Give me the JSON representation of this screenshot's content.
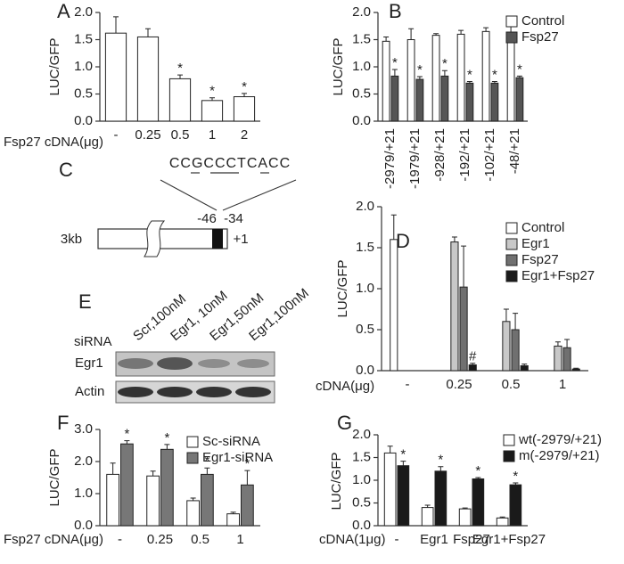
{
  "chart_data": [
    {
      "type": "bar",
      "panel": "A",
      "y_label": "LUC/GFP",
      "x_label": "Fsp27 cDNA(μg)",
      "categories": [
        "-",
        "0.25",
        "0.5",
        "1",
        "2"
      ],
      "series": [
        {
          "color": "#ffffff",
          "values": [
            1.62,
            1.55,
            0.78,
            0.38,
            0.45
          ],
          "errors": [
            0.3,
            0.15,
            0.07,
            0.05,
            0.06
          ],
          "significance": [
            null,
            null,
            "*",
            "*",
            "*"
          ]
        }
      ],
      "ylim": [
        0,
        2
      ],
      "yticks": [
        {
          "value": 0,
          "label": "0.0"
        },
        0.5,
        {
          "value": 1,
          "label": "1.0"
        },
        1.5,
        {
          "value": 2,
          "label": "2.0"
        }
      ]
    },
    {
      "type": "bar",
      "panel": "B",
      "y_label": "LUC/GFP",
      "categories": [
        "-2979/+21",
        "-1979/+21",
        "-928/+21",
        "-192/+21",
        "-102/+21",
        "-48/+21"
      ],
      "series": [
        {
          "name": "Control",
          "color": "#ffffff",
          "values": [
            1.47,
            1.5,
            1.58,
            1.6,
            1.65,
            1.6
          ],
          "errors": [
            0.08,
            0.2,
            0.03,
            0.07,
            0.07,
            0.3
          ],
          "significance": [
            null,
            null,
            null,
            null,
            null,
            null
          ]
        },
        {
          "name": "Fsp27",
          "color": "#555555",
          "values": [
            0.83,
            0.77,
            0.83,
            0.7,
            0.7,
            0.8
          ],
          "errors": [
            0.12,
            0.05,
            0.1,
            0.03,
            0.03,
            0.03
          ],
          "significance": [
            "*",
            "*",
            "*",
            "*",
            "*",
            "*"
          ]
        }
      ],
      "ylim": [
        0,
        2
      ],
      "yticks": [
        {
          "value": 0,
          "label": "0.0"
        },
        0.5,
        {
          "value": 1,
          "label": "1.0"
        },
        1.5,
        {
          "value": 2,
          "label": "2.0"
        }
      ],
      "legend": "upper-right"
    },
    {
      "type": "bar",
      "panel": "D",
      "y_label": "LUC/GFP",
      "x_label": "cDNA(μg)",
      "categories": [
        "-",
        "0.25",
        "0.5",
        "1"
      ],
      "series": [
        {
          "name": "Control",
          "color": "#ffffff",
          "values": [
            1.6,
            null,
            null,
            null
          ],
          "errors": [
            0.3,
            null,
            null,
            null
          ],
          "significance": [
            null,
            null,
            null,
            null
          ]
        },
        {
          "name": "Egr1",
          "color": "#c8c8c8",
          "values": [
            null,
            1.57,
            0.6,
            0.3
          ],
          "errors": [
            null,
            0.06,
            0.15,
            0.05
          ],
          "significance": [
            null,
            null,
            null,
            null
          ]
        },
        {
          "name": "Fsp27",
          "color": "#707070",
          "values": [
            null,
            1.02,
            0.5,
            0.28
          ],
          "errors": [
            null,
            0.5,
            0.2,
            0.1
          ],
          "significance": [
            null,
            null,
            null,
            null
          ]
        },
        {
          "name": "Egr1+Fsp27",
          "color": "#1a1a1a",
          "values": [
            null,
            0.07,
            0.06,
            0.02
          ],
          "errors": [
            null,
            0.02,
            0.02,
            0.01
          ],
          "significance": [
            null,
            "#",
            null,
            null
          ]
        }
      ],
      "ylim": [
        0,
        2
      ],
      "yticks": [
        {
          "value": 0,
          "label": "0.0"
        },
        0.5,
        {
          "value": 1,
          "label": "1.0"
        },
        1.5,
        {
          "value": 2,
          "label": "2.0"
        }
      ],
      "legend": "upper-right"
    },
    {
      "type": "bar",
      "panel": "F",
      "y_label": "LUC/GFP",
      "x_label": "Fsp27 cDNA(μg)",
      "categories": [
        "-",
        "0.25",
        "0.5",
        "1"
      ],
      "series": [
        {
          "name": "Sc-siRNA",
          "color": "#ffffff",
          "values": [
            1.6,
            1.55,
            0.78,
            0.37
          ],
          "errors": [
            0.35,
            0.15,
            0.08,
            0.05
          ],
          "significance": [
            null,
            null,
            null,
            null
          ]
        },
        {
          "name": "Egr1-siRNA",
          "color": "#777777",
          "values": [
            2.55,
            2.38,
            1.6,
            1.27
          ],
          "errors": [
            0.1,
            0.15,
            0.2,
            0.45
          ],
          "significance": [
            "*",
            "*",
            "*",
            "*"
          ]
        }
      ],
      "ylim": [
        0,
        3
      ],
      "yticks": [
        {
          "value": 0,
          "label": "0.0"
        },
        {
          "value": 1,
          "label": "1.0"
        },
        {
          "value": 2,
          "label": "2.0"
        },
        {
          "value": 3,
          "label": "3.0"
        }
      ],
      "legend": "upper-right"
    },
    {
      "type": "bar",
      "panel": "G",
      "y_label": "LUC/GFP",
      "x_label": "cDNA(1μg)",
      "categories": [
        "-",
        "Egr1",
        "Fsp27",
        "Egr1+Fsp27"
      ],
      "series": [
        {
          "name": "wt(-2979/+21)",
          "color": "#ffffff",
          "values": [
            1.6,
            0.4,
            0.37,
            0.17
          ],
          "errors": [
            0.15,
            0.05,
            0.02,
            0.02
          ],
          "significance": [
            null,
            null,
            null,
            null
          ]
        },
        {
          "name": "m(-2979/+21)",
          "color": "#1a1a1a",
          "values": [
            1.32,
            1.2,
            1.03,
            0.9
          ],
          "errors": [
            0.1,
            0.1,
            0.03,
            0.04
          ],
          "significance": [
            "*",
            "*",
            "*",
            "*"
          ]
        }
      ],
      "ylim": [
        0,
        2
      ],
      "yticks": [
        {
          "value": 0,
          "label": "0.0"
        },
        0.5,
        {
          "value": 1,
          "label": "1.0"
        },
        1.5,
        {
          "value": 2,
          "label": "2.0"
        }
      ],
      "legend": "upper-right"
    }
  ],
  "panel_c": {
    "letter": "C",
    "sequence": "CCGCCCTCACC",
    "start": "-46",
    "end": "-34",
    "length": "3kb",
    "tss": "+1"
  },
  "panel_e": {
    "letter": "E",
    "row_header": "siRNA",
    "lanes": [
      "Scr,100nM",
      "Egr1, 10nM",
      "Egr1,50nM",
      "Egr1,100nM"
    ],
    "rows": [
      "Egr1",
      "Actin"
    ]
  }
}
